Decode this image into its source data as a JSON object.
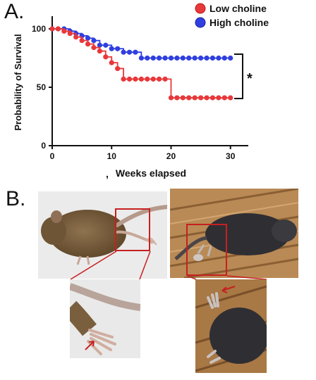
{
  "panels": {
    "a_label": "A.",
    "b_label": "B."
  },
  "chart_data": {
    "type": "line",
    "subtype": "kaplan-meier",
    "ylabel": "Probability of Survival",
    "xlabel": "Weeks elapsed",
    "xlabel_prefix": ",",
    "xlim": [
      0,
      33
    ],
    "ylim": [
      0,
      100
    ],
    "xticks": [
      0,
      10,
      20,
      30
    ],
    "yticks": [
      0,
      50,
      100
    ],
    "legend_position": "top-right",
    "significance_marker": "*",
    "series": [
      {
        "name": "Low choline",
        "color": "#e8383a",
        "step_x": [
          0,
          2,
          3,
          4,
          5,
          6,
          7,
          8,
          9,
          10,
          11,
          12,
          20,
          30
        ],
        "step_y": [
          100,
          98,
          96,
          93,
          90,
          87,
          84,
          81,
          76,
          71,
          66,
          57,
          41,
          41
        ],
        "markers_x": [
          0,
          1,
          2,
          3,
          4,
          5,
          6,
          7,
          8,
          9,
          10,
          11,
          12,
          13,
          14,
          15,
          16,
          17,
          18,
          19,
          20,
          21,
          22,
          23,
          24,
          25,
          26,
          27,
          28,
          29,
          30
        ],
        "markers_y": [
          100,
          100,
          98,
          96,
          93,
          90,
          87,
          84,
          81,
          76,
          71,
          66,
          57,
          57,
          57,
          57,
          57,
          57,
          57,
          57,
          41,
          41,
          41,
          41,
          41,
          41,
          41,
          41,
          41,
          41,
          41
        ]
      },
      {
        "name": "High choline",
        "color": "#2f3fe0",
        "step_x": [
          0,
          3,
          4,
          5,
          6,
          7,
          8,
          10,
          12,
          15,
          30
        ],
        "step_y": [
          100,
          98,
          96,
          94,
          92,
          90,
          86,
          83,
          80,
          75,
          75
        ],
        "markers_x": [
          0,
          1,
          2,
          3,
          4,
          5,
          6,
          7,
          8,
          9,
          10,
          11,
          12,
          13,
          14,
          15,
          16,
          17,
          18,
          19,
          20,
          21,
          22,
          23,
          24,
          25,
          26,
          27,
          28,
          29,
          30
        ],
        "markers_y": [
          100,
          100,
          100,
          98,
          96,
          94,
          92,
          90,
          86,
          86,
          83,
          83,
          80,
          80,
          80,
          75,
          75,
          75,
          75,
          75,
          75,
          75,
          75,
          75,
          75,
          75,
          75,
          75,
          75,
          75,
          75
        ]
      }
    ]
  },
  "photo_colors": {
    "mouse_brown": "#7a5f3e",
    "mouse_dark": "#2f2f33",
    "wood": "#b98a55",
    "highlight": "#c62020"
  }
}
